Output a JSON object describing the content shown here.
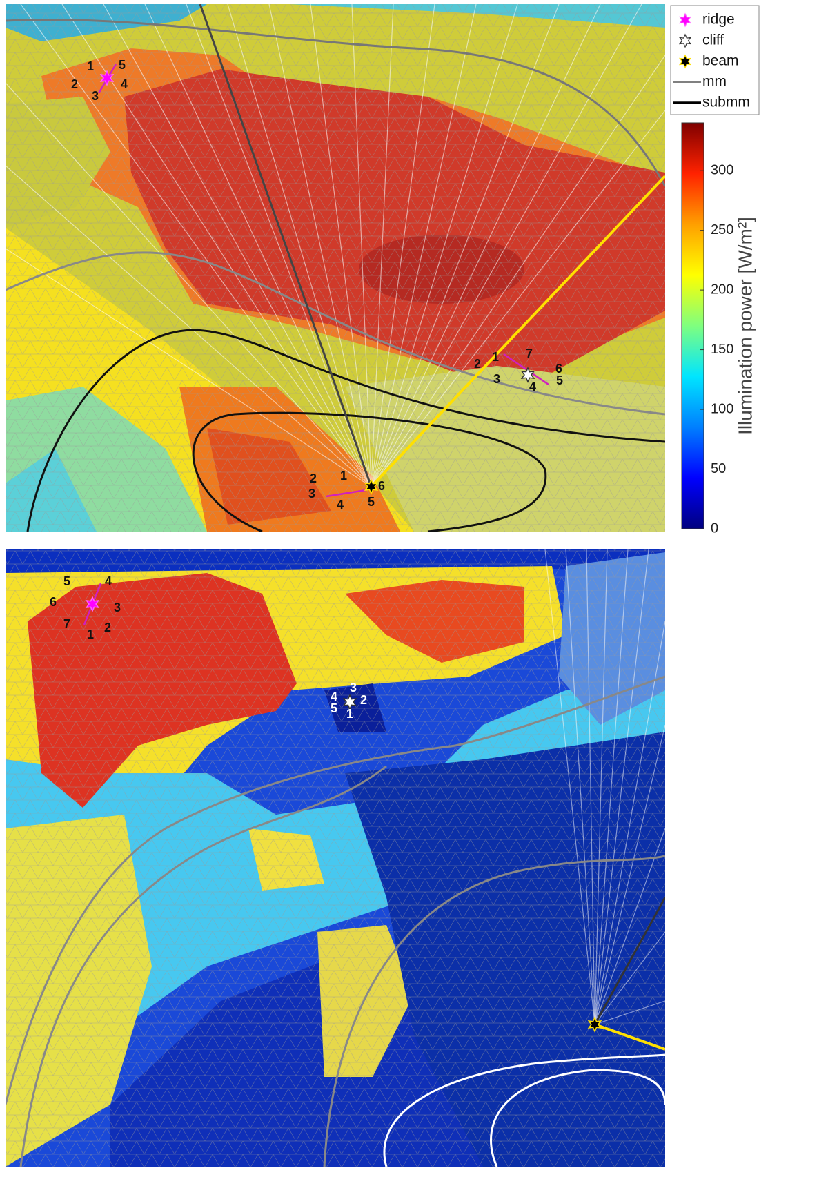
{
  "chart_data": {
    "type": "mesh",
    "legend": [
      {
        "name": "ridge",
        "color": "#ff00ff"
      },
      {
        "name": "cliff",
        "color": "#ffffff"
      },
      {
        "name": "beam",
        "color": "#000000"
      },
      {
        "name": "mm",
        "color": "#808080"
      },
      {
        "name": "submm",
        "color": "#000000"
      }
    ],
    "colorbar": {
      "label": "Illumination power [W/m²]",
      "clim": [
        0,
        340
      ],
      "ticks": [
        0,
        50,
        100,
        150,
        200,
        250,
        300
      ],
      "colormap": [
        "#00007f",
        "#0000ff",
        "#007fff",
        "#00e5ff",
        "#7fff7f",
        "#ffff00",
        "#ff9f00",
        "#ff2200",
        "#7f0000"
      ]
    },
    "panels": [
      {
        "labels": {
          "ridge": [
            1,
            2,
            3,
            4,
            5
          ],
          "cliff": [
            1,
            2,
            3,
            4,
            5,
            6,
            7
          ],
          "beam": [
            1,
            2,
            3,
            4,
            5,
            6
          ]
        }
      },
      {
        "labels": {
          "ridge": [
            1,
            2,
            3,
            4,
            5,
            6,
            7
          ],
          "cliff": [
            1,
            2,
            3,
            4,
            5
          ]
        }
      }
    ]
  }
}
